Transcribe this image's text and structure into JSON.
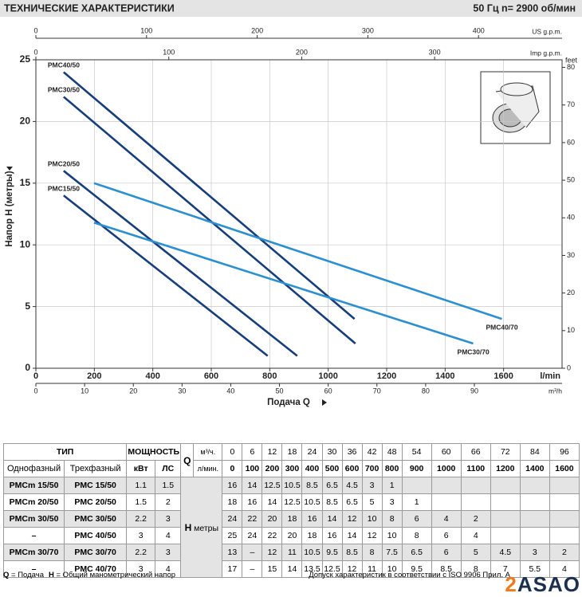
{
  "chart_data": {
    "type": "line",
    "title": "ТЕХНИЧЕСКИЕ ХАРАКТЕРИСТИКИ",
    "subtitle": "50 Гц   n= 2900  об/мин",
    "x_label": "Подача Q",
    "x_unit": "l/min",
    "y_label": "Напор H  (метры)",
    "xlim": [
      0,
      1800
    ],
    "xticks": [
      0,
      200,
      400,
      600,
      800,
      1000,
      1200,
      1400,
      1600
    ],
    "ylim": [
      0,
      25
    ],
    "yticks": [
      0,
      5,
      10,
      15,
      20,
      25
    ],
    "y2_label": "feet",
    "y2lim": [
      0,
      82.02
    ],
    "y2ticks": [
      0,
      10,
      20,
      30,
      40,
      50,
      60,
      70,
      80
    ],
    "extra_x_axes": [
      {
        "label": "US g.p.m.",
        "position": "top",
        "lim": [
          0,
          475.5
        ],
        "ticks": [
          0,
          100,
          200,
          300,
          400
        ]
      },
      {
        "label": "Imp g.p.m.",
        "position": "top",
        "lim": [
          0,
          395.9
        ],
        "ticks": [
          0,
          100,
          200,
          300
        ]
      },
      {
        "label": "m³/h",
        "position": "bottom",
        "lim": [
          0,
          108
        ],
        "ticks": [
          0,
          10,
          20,
          30,
          40,
          50,
          60,
          70,
          80,
          90
        ]
      }
    ],
    "grid": true,
    "series": [
      {
        "name": "PMC40/50",
        "color": "#163d7c",
        "x": [
          95,
          1090
        ],
        "values": [
          24,
          4
        ]
      },
      {
        "name": "PMC30/50",
        "color": "#163d7c",
        "x": [
          95,
          1093
        ],
        "values": [
          22,
          2
        ]
      },
      {
        "name": "PMC20/50",
        "color": "#163d7c",
        "x": [
          95,
          894
        ],
        "values": [
          16,
          1
        ]
      },
      {
        "name": "PMC15/50",
        "color": "#163d7c",
        "x": [
          95,
          793
        ],
        "values": [
          14,
          1
        ]
      },
      {
        "name": "PMC40/70",
        "color": "#2b8fd0",
        "x": [
          199,
          1594
        ],
        "values": [
          15,
          4
        ]
      },
      {
        "name": "PMC30/70",
        "color": "#2b8fd0",
        "x": [
          199,
          1496
        ],
        "values": [
          11.8,
          2
        ]
      }
    ]
  },
  "table": {
    "type_header": "ТИП",
    "power_header": "МОЩНОСТЬ",
    "q_symbol": "Q",
    "q_unit_m3h": "м³/ч.",
    "q_unit_lmin": "л/мин.",
    "single_phase": "Однофазный",
    "three_phase": "Трехфазный",
    "kw": "кВт",
    "hp": "ЛС",
    "q_m3h": [
      0,
      6,
      12,
      18,
      24,
      30,
      36,
      42,
      48,
      54,
      60,
      66,
      72,
      84,
      96
    ],
    "q_lmin": [
      0,
      100,
      200,
      300,
      400,
      500,
      600,
      700,
      800,
      900,
      1000,
      1100,
      1200,
      1400,
      1600
    ],
    "h_symbol": "H",
    "h_unit": "метры",
    "rows": [
      {
        "single": "PMCm 15/50",
        "three": "PMC 15/50",
        "kw": 1.1,
        "hp": 1.5,
        "h": [
          16,
          14,
          12.5,
          10.5,
          8.5,
          6.5,
          4.5,
          3,
          1,
          null,
          null,
          null,
          null,
          null,
          null
        ]
      },
      {
        "single": "PMCm 20/50",
        "three": "PMC 20/50",
        "kw": 1.5,
        "hp": 2,
        "h": [
          18,
          16,
          14,
          12.5,
          10.5,
          8.5,
          6.5,
          5,
          3,
          1,
          null,
          null,
          null,
          null,
          null
        ]
      },
      {
        "single": "PMCm 30/50",
        "three": "PMC 30/50",
        "kw": 2.2,
        "hp": 3,
        "h": [
          24,
          22,
          20,
          18,
          16,
          14,
          12,
          10,
          8,
          6,
          4,
          2,
          null,
          null,
          null
        ]
      },
      {
        "single": "–",
        "three": "PMC 40/50",
        "kw": 3,
        "hp": 4,
        "h": [
          25,
          24,
          22,
          20,
          18,
          16,
          14,
          12,
          10,
          8,
          6,
          4,
          null,
          null,
          null
        ]
      },
      {
        "single": "PMCm 30/70",
        "three": "PMC 30/70",
        "kw": 2.2,
        "hp": 3,
        "h": [
          13,
          "–",
          12,
          11,
          10.5,
          9.5,
          8.5,
          8,
          7.5,
          6.5,
          6,
          5,
          4.5,
          3,
          2
        ]
      },
      {
        "single": "–",
        "three": "PMC 40/70",
        "kw": 3,
        "hp": 4,
        "h": [
          17,
          "–",
          15,
          14,
          13.5,
          12.5,
          12,
          11,
          10,
          9.5,
          8.5,
          8,
          7,
          5.5,
          4
        ]
      }
    ]
  },
  "footer": {
    "legend": [
      {
        "symbol": "Q",
        "text": "= Подача"
      },
      {
        "symbol": "H",
        "text": "= Общий манометрический напор"
      }
    ],
    "tolerance": "Допуск характеристик в соответствии с ISO 9906 Прил. А"
  },
  "logo": "ASAO"
}
